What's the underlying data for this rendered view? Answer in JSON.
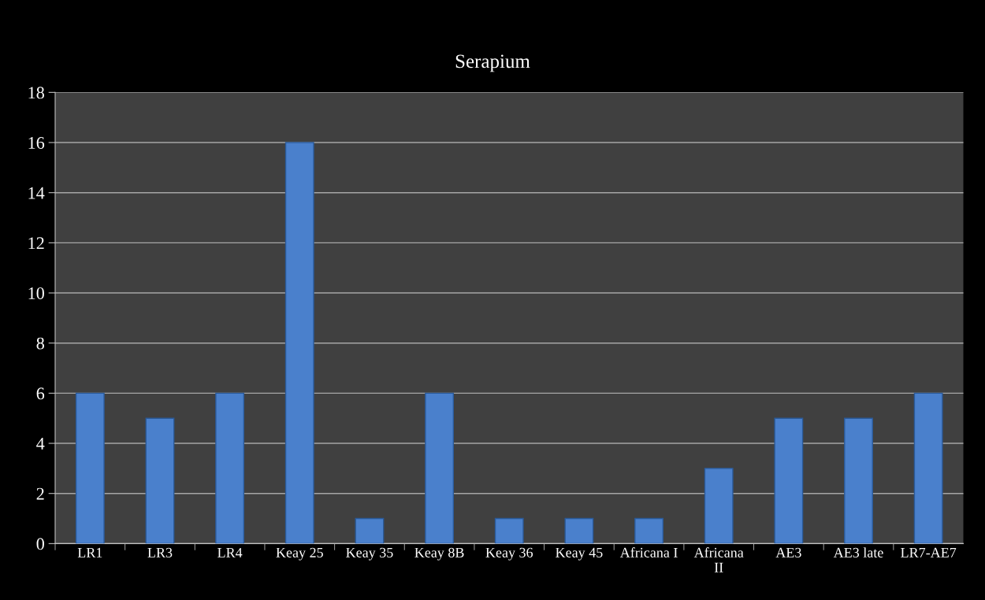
{
  "chart_data": {
    "type": "bar",
    "title": "Serapium",
    "categories": [
      "LR1",
      "LR3",
      "LR4",
      "Keay 25",
      "Keay 35",
      "Keay 8B",
      "Keay 36",
      "Keay 45",
      "Africana I",
      "Africana II",
      "AE3",
      "AE3 late",
      "LR7-AE7"
    ],
    "values": [
      6,
      5,
      6,
      16,
      1,
      6,
      1,
      1,
      1,
      3,
      5,
      5,
      6
    ],
    "color": "#4a80cc",
    "ylim": [
      0,
      18
    ],
    "yticks": [
      0,
      2,
      4,
      6,
      8,
      10,
      12,
      14,
      16,
      18
    ],
    "grid": "y",
    "legend": false
  }
}
